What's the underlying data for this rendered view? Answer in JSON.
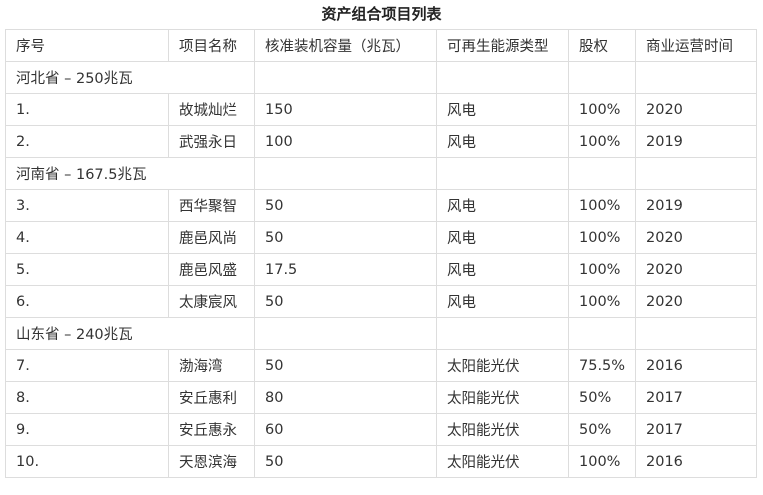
{
  "title": "资产组合项目列表",
  "headers": [
    "序号",
    "项目名称",
    "核准装机容量（兆瓦）",
    "可再生能源类型",
    "股权",
    "商业运营时间"
  ],
  "rows": [
    {
      "group": "河北省 – 250兆瓦"
    },
    {
      "cells": [
        "1.",
        "故城灿烂",
        "150",
        "风电",
        "100%",
        "2020"
      ]
    },
    {
      "cells": [
        "2.",
        "武强永日",
        "100",
        "风电",
        "100%",
        "2019"
      ]
    },
    {
      "group": "河南省 – 167.5兆瓦"
    },
    {
      "cells": [
        "3.",
        "西华聚智",
        "50",
        "风电",
        "100%",
        "2019"
      ]
    },
    {
      "cells": [
        "4.",
        "鹿邑风尚",
        "50",
        "风电",
        "100%",
        "2020"
      ]
    },
    {
      "cells": [
        "5.",
        "鹿邑风盛",
        "17.5",
        "风电",
        "100%",
        "2020"
      ]
    },
    {
      "cells": [
        "6.",
        "太康宸风",
        "50",
        "风电",
        "100%",
        "2020"
      ]
    },
    {
      "group": "山东省 – 240兆瓦"
    },
    {
      "cells": [
        "7.",
        "渤海湾",
        "50",
        "太阳能光伏",
        "75.5%",
        "2016"
      ]
    },
    {
      "cells": [
        "8.",
        "安丘惠利",
        "80",
        "太阳能光伏",
        "50%",
        "2017"
      ]
    },
    {
      "cells": [
        "9.",
        "安丘惠永",
        "60",
        "太阳能光伏",
        "50%",
        "2017"
      ]
    },
    {
      "cells": [
        "10.",
        "天恩滨海",
        "50",
        "太阳能光伏",
        "100%",
        "2016"
      ]
    }
  ]
}
